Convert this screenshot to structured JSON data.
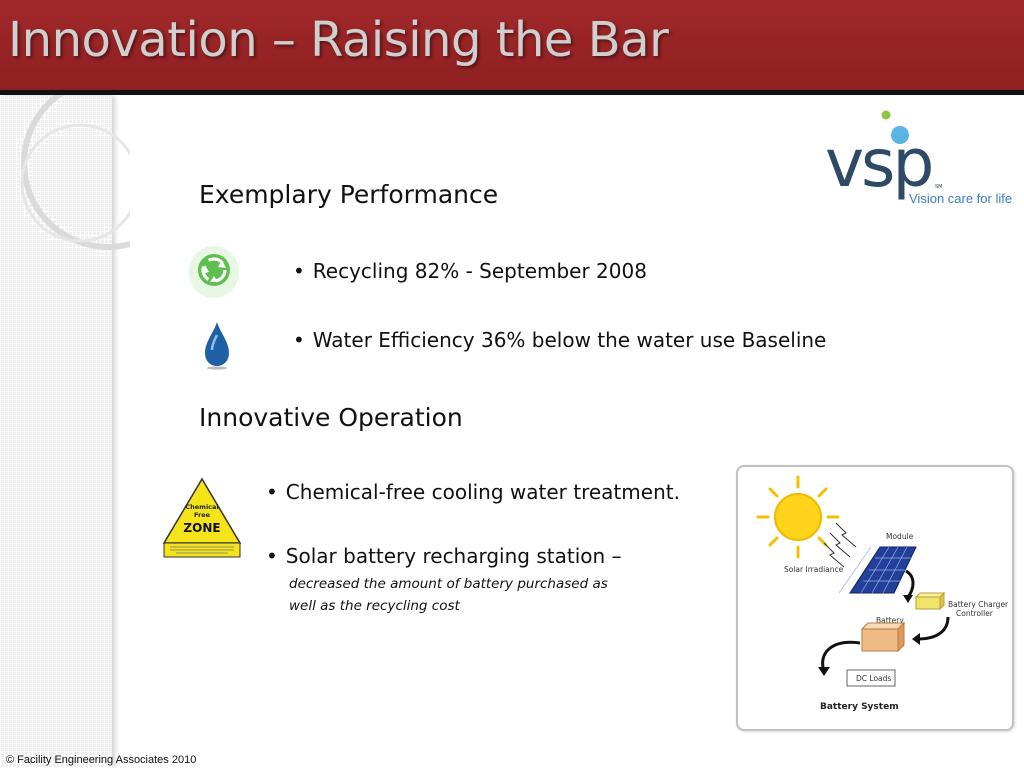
{
  "slide": {
    "title": "Innovation – Raising the Bar",
    "footer": "© Facility Engineering Associates 2010"
  },
  "logo": {
    "brand": "vsp",
    "service_mark": "SM",
    "tagline": "Vision care for life",
    "colors": {
      "text": "#2e4a67",
      "dot_green": "#8cc63f",
      "dot_blue": "#5ab4e5",
      "tagline": "#3b7fbf"
    }
  },
  "sections": {
    "exemplary": {
      "heading": "Exemplary Performance",
      "items": [
        {
          "icon": "recycle-icon",
          "text": "Recycling 82% - September 2008"
        },
        {
          "icon": "water-drop-icon",
          "text": "Water Efficiency 36% below the water use Baseline"
        }
      ]
    },
    "innovative": {
      "heading": "Innovative Operation",
      "items": [
        {
          "icon": "chemical-free-zone-sign",
          "text": "Chemical-free cooling water treatment."
        },
        {
          "text": "Solar battery recharging station –",
          "note_line1": "decreased the amount of battery purchased as",
          "note_line2": "well as the recycling cost"
        }
      ]
    }
  },
  "chemical_sign": {
    "line1": "Chemical",
    "line2": "Free",
    "line3": "ZONE"
  },
  "diagram": {
    "title": "Battery System",
    "labels": {
      "module": "Module",
      "solar_irradiance": "Solar Irradiance",
      "charger_line1": "Battery Charger",
      "charger_line2": "Controller",
      "battery": "Battery",
      "dc_loads": "DC Loads"
    }
  },
  "colors": {
    "header_red": "#9b2426",
    "title_gray": "#cfcfcf",
    "body_text": "#111111"
  }
}
